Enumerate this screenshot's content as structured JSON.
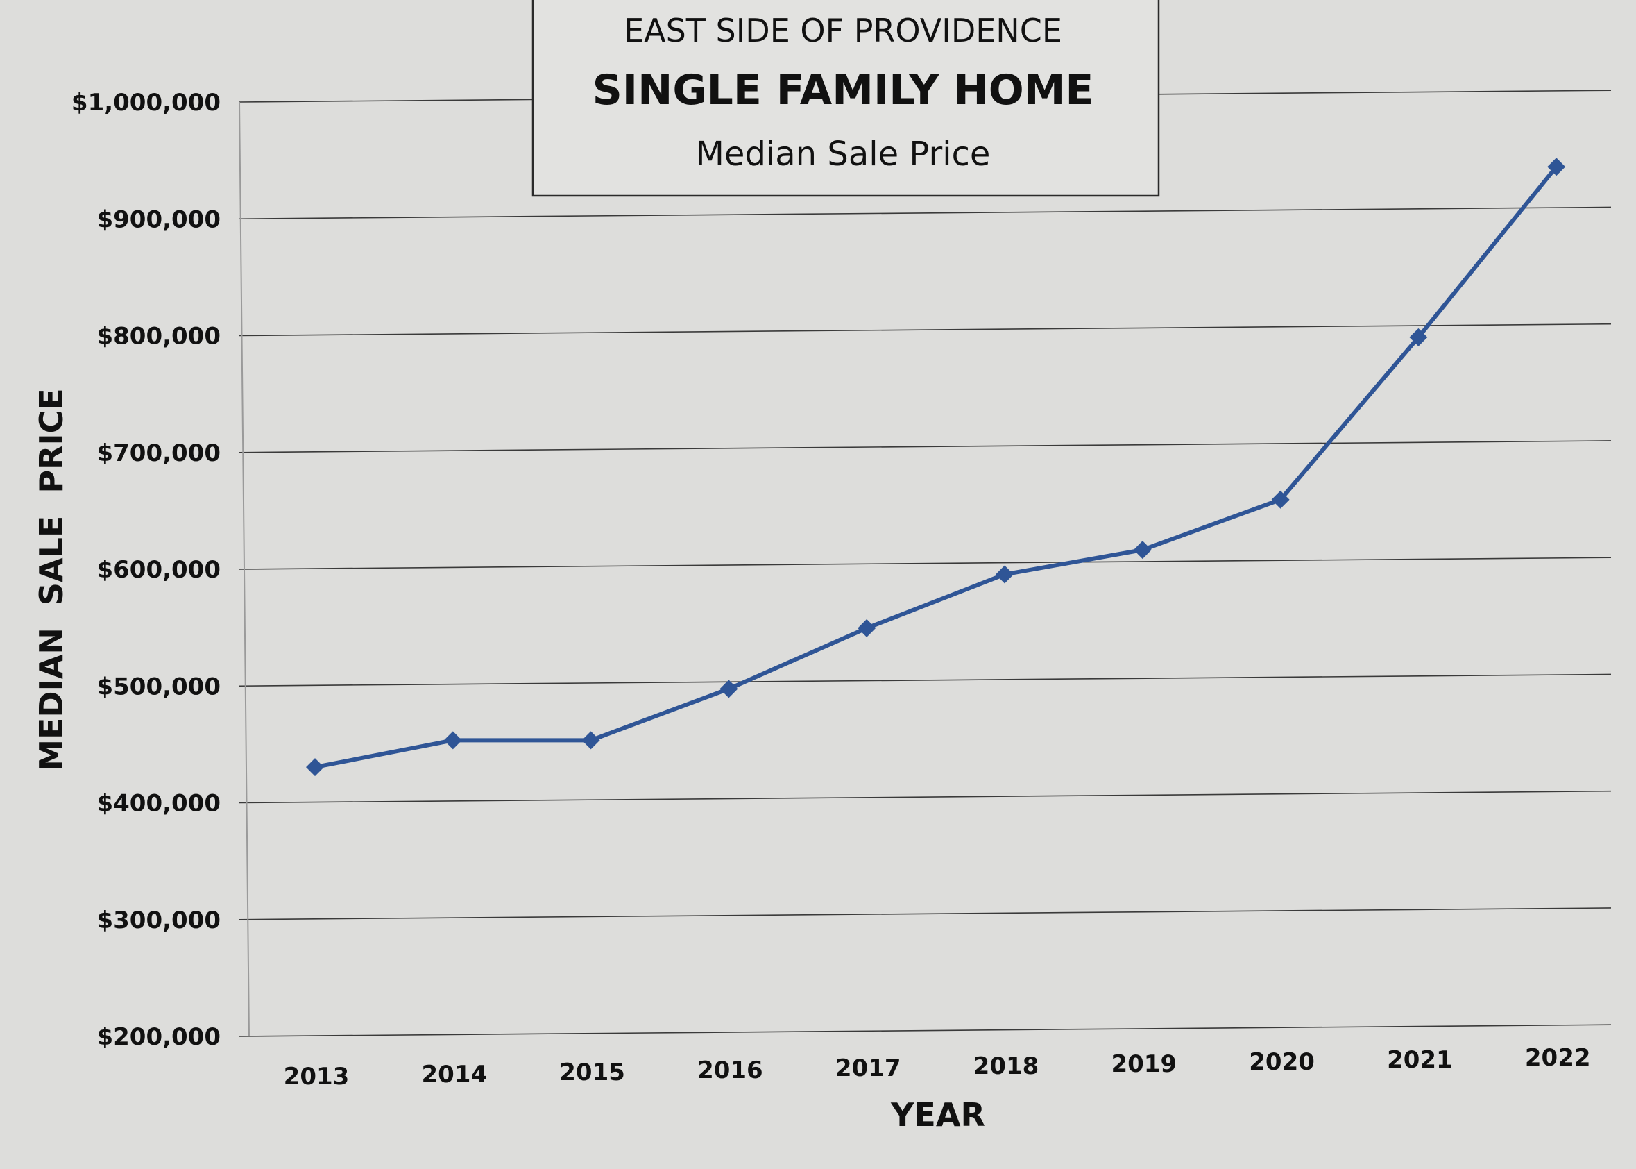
{
  "chart_data": {
    "type": "line",
    "title_lines": [
      "EAST SIDE OF PROVIDENCE",
      "SINGLE FAMILY HOME",
      "Median Sale Price"
    ],
    "xlabel": "YEAR",
    "ylabel": "MEDIAN  SALE  PRICE",
    "categories": [
      "2013",
      "2014",
      "2015",
      "2016",
      "2017",
      "2018",
      "2019",
      "2020",
      "2021",
      "2022"
    ],
    "series": [
      {
        "values": [
          430000,
          452000,
          451000,
          494000,
          545000,
          590000,
          610000,
          652000,
          790000,
          935000
        ],
        "color": "#2f5596"
      }
    ],
    "ylim": [
      200000,
      1000000
    ],
    "y_ticks": [
      {
        "value": 1000000,
        "label": "$1,000,000"
      },
      {
        "value": 900000,
        "label": "$900,000"
      },
      {
        "value": 800000,
        "label": "$800,000"
      },
      {
        "value": 700000,
        "label": "$700,000"
      },
      {
        "value": 600000,
        "label": "$600,000"
      },
      {
        "value": 500000,
        "label": "$500,000"
      },
      {
        "value": 400000,
        "label": "$400,000"
      },
      {
        "value": 300000,
        "label": "$300,000"
      },
      {
        "value": 200000,
        "label": "$200,000"
      }
    ],
    "grid": true,
    "marker": "diamond",
    "legend": "none",
    "colors": {
      "background": "#dddddb",
      "gridline": "#3a3a3a",
      "title_box": "#e2e2e0"
    }
  }
}
